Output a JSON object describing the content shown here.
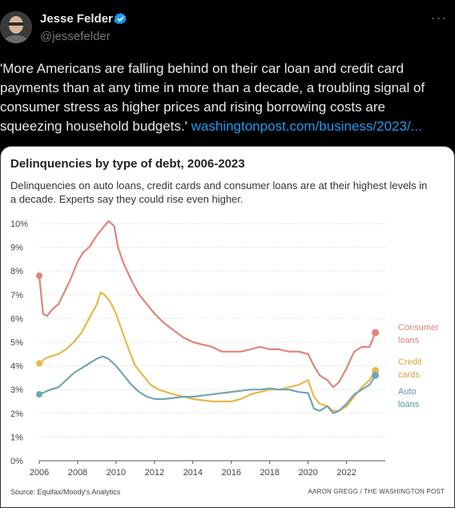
{
  "tweet": {
    "author_name": "Jesse Felder",
    "handle": "@jessefelder",
    "more_icon": "ellipsis-icon",
    "verified_icon": "verified-badge-icon",
    "text_lines": [
      "'More Americans are falling behind on their car loan and credit card",
      "payments than at any time in more than a decade, a troubling signal of",
      "consumer stress as higher prices and rising borrowing costs are",
      "squeezing household budgets.' "
    ],
    "link_text": "washingtonpost.com/business/2023/..."
  },
  "chart_data": {
    "type": "line",
    "title": "Delinquencies by type of debt, 2006-2023",
    "subtitle": "Delinquencies on auto loans, credit cards and consumer loans are at their highest levels in a decade. Experts say they could rise even higher.",
    "source": "Source: Equifax/Moody's Analytics",
    "credit": "AARON GREGG / THE WASHINGTON POST",
    "ylim": [
      0,
      10
    ],
    "xlim": [
      2006,
      2023.6
    ],
    "y_ticks": [
      "0%",
      "1%",
      "2%",
      "3%",
      "4%",
      "5%",
      "6%",
      "7%",
      "8%",
      "9%",
      "10%"
    ],
    "x_ticks": [
      "2006",
      "2008",
      "2010",
      "2012",
      "2014",
      "2016",
      "2018",
      "2020",
      "2022"
    ],
    "grid": true,
    "series": [
      {
        "name": "Consumer loans",
        "color": "#e0857b",
        "x": [
          2006.0,
          2006.2,
          2006.4,
          2006.7,
          2007.0,
          2007.3,
          2007.6,
          2008.0,
          2008.3,
          2008.6,
          2009.0,
          2009.3,
          2009.6,
          2009.9,
          2010.1,
          2010.4,
          2010.8,
          2011.2,
          2011.6,
          2012.0,
          2012.5,
          2013.0,
          2013.5,
          2014.0,
          2014.5,
          2015.0,
          2015.5,
          2016.0,
          2016.5,
          2017.0,
          2017.5,
          2018.0,
          2018.5,
          2019.0,
          2019.5,
          2020.0,
          2020.3,
          2020.6,
          2021.0,
          2021.3,
          2021.6,
          2022.0,
          2022.4,
          2022.8,
          2023.2,
          2023.5
        ],
        "values": [
          7.8,
          6.2,
          6.1,
          6.4,
          6.6,
          7.1,
          7.6,
          8.4,
          8.8,
          9.0,
          9.5,
          9.8,
          10.1,
          9.9,
          9.0,
          8.3,
          7.6,
          7.0,
          6.6,
          6.2,
          5.8,
          5.5,
          5.2,
          5.0,
          4.9,
          4.8,
          4.6,
          4.6,
          4.6,
          4.7,
          4.8,
          4.7,
          4.7,
          4.6,
          4.6,
          4.5,
          4.0,
          3.6,
          3.4,
          3.1,
          3.3,
          3.9,
          4.6,
          4.8,
          4.8,
          5.4
        ]
      },
      {
        "name": "Credit cards",
        "color": "#e8b84a",
        "x": [
          2006.0,
          2006.3,
          2006.6,
          2007.0,
          2007.4,
          2007.8,
          2008.2,
          2008.6,
          2009.0,
          2009.2,
          2009.4,
          2009.7,
          2010.0,
          2010.3,
          2010.7,
          2011.0,
          2011.4,
          2011.8,
          2012.2,
          2012.6,
          2013.0,
          2013.5,
          2014.0,
          2014.5,
          2015.0,
          2015.5,
          2016.0,
          2016.5,
          2017.0,
          2017.5,
          2018.0,
          2018.5,
          2019.0,
          2019.5,
          2020.0,
          2020.3,
          2020.6,
          2021.0,
          2021.3,
          2021.6,
          2022.0,
          2022.4,
          2022.8,
          2023.2,
          2023.5
        ],
        "values": [
          4.1,
          4.3,
          4.4,
          4.5,
          4.7,
          5.0,
          5.4,
          6.0,
          6.6,
          7.1,
          7.0,
          6.7,
          6.2,
          5.5,
          4.6,
          4.0,
          3.6,
          3.2,
          3.0,
          2.9,
          2.8,
          2.7,
          2.6,
          2.55,
          2.5,
          2.5,
          2.5,
          2.6,
          2.8,
          2.9,
          3.0,
          3.0,
          3.1,
          3.2,
          3.4,
          2.7,
          2.4,
          2.3,
          2.1,
          2.1,
          2.3,
          2.7,
          3.1,
          3.4,
          3.8
        ]
      },
      {
        "name": "Auto loans",
        "color": "#72a6b2",
        "x": [
          2006.0,
          2006.3,
          2006.6,
          2007.0,
          2007.4,
          2007.8,
          2008.2,
          2008.6,
          2009.0,
          2009.3,
          2009.6,
          2010.0,
          2010.4,
          2010.8,
          2011.2,
          2011.6,
          2012.0,
          2012.5,
          2013.0,
          2013.5,
          2014.0,
          2014.5,
          2015.0,
          2015.5,
          2016.0,
          2016.5,
          2017.0,
          2017.5,
          2018.0,
          2018.5,
          2019.0,
          2019.5,
          2020.0,
          2020.3,
          2020.6,
          2021.0,
          2021.3,
          2021.6,
          2022.0,
          2022.4,
          2022.8,
          2023.2,
          2023.5
        ],
        "values": [
          2.8,
          2.9,
          3.0,
          3.1,
          3.4,
          3.7,
          3.9,
          4.1,
          4.3,
          4.4,
          4.3,
          4.0,
          3.6,
          3.2,
          2.9,
          2.7,
          2.6,
          2.6,
          2.65,
          2.7,
          2.7,
          2.75,
          2.8,
          2.85,
          2.9,
          2.95,
          3.0,
          3.0,
          3.05,
          3.0,
          3.0,
          2.9,
          2.85,
          2.2,
          2.1,
          2.3,
          2.0,
          2.1,
          2.4,
          2.8,
          3.0,
          3.2,
          3.6
        ]
      }
    ],
    "legend": [
      {
        "line1": "Consumer",
        "line2": "loans",
        "color": "#e0857b"
      },
      {
        "line1": "Credit",
        "line2": "cards",
        "color": "#d9a336"
      },
      {
        "line1": "Auto",
        "line2": "loans",
        "color": "#5f98a6"
      }
    ]
  }
}
